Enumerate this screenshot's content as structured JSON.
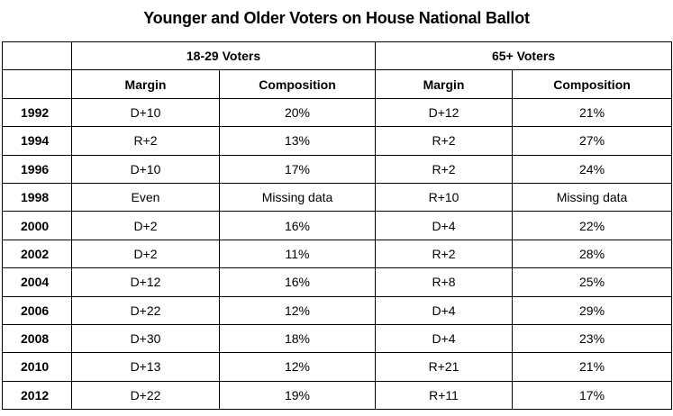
{
  "title": "Younger and Older Voters on House National Ballot",
  "groups": [
    "18-29 Voters",
    "65+ Voters"
  ],
  "subheaders": [
    "Margin",
    "Composition",
    "Margin",
    "Composition"
  ],
  "rows": [
    {
      "year": "1992",
      "young_margin": "D+10",
      "young_comp": "20%",
      "old_margin": "D+12",
      "old_comp": "21%"
    },
    {
      "year": "1994",
      "young_margin": "R+2",
      "young_comp": "13%",
      "old_margin": "R+2",
      "old_comp": "27%"
    },
    {
      "year": "1996",
      "young_margin": "D+10",
      "young_comp": "17%",
      "old_margin": "R+2",
      "old_comp": "24%"
    },
    {
      "year": "1998",
      "young_margin": "Even",
      "young_comp": "Missing data",
      "old_margin": "R+10",
      "old_comp": "Missing data"
    },
    {
      "year": "2000",
      "young_margin": "D+2",
      "young_comp": "16%",
      "old_margin": "D+4",
      "old_comp": "22%"
    },
    {
      "year": "2002",
      "young_margin": "D+2",
      "young_comp": "11%",
      "old_margin": "R+2",
      "old_comp": "28%"
    },
    {
      "year": "2004",
      "young_margin": "D+12",
      "young_comp": "16%",
      "old_margin": "R+8",
      "old_comp": "25%"
    },
    {
      "year": "2006",
      "young_margin": "D+22",
      "young_comp": "12%",
      "old_margin": "D+4",
      "old_comp": "29%"
    },
    {
      "year": "2008",
      "young_margin": "D+30",
      "young_comp": "18%",
      "old_margin": "D+4",
      "old_comp": "23%"
    },
    {
      "year": "2010",
      "young_margin": "D+13",
      "young_comp": "12%",
      "old_margin": "R+21",
      "old_comp": "21%"
    },
    {
      "year": "2012",
      "young_margin": "D+22",
      "young_comp": "19%",
      "old_margin": "R+11",
      "old_comp": "17%"
    }
  ]
}
